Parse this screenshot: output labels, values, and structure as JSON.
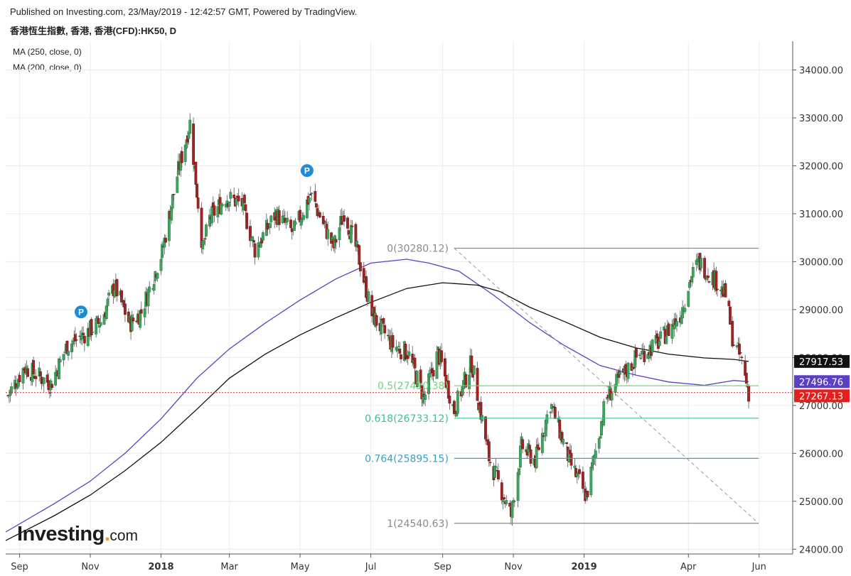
{
  "header": {
    "published": "Published on Investing.com, 23/May/2019 - 12:42:57 GMT, Powered by TradingView.",
    "symbol": "香港恆生指數, 香港, 香港(CFD):HK50, D"
  },
  "indicators": [
    {
      "label": "MA (250, close, 0)",
      "color": "#111111"
    },
    {
      "label": "MA (200, close, 0)",
      "color": "#5b3fc4"
    }
  ],
  "logo": {
    "word": "Investing",
    "suffix": "com"
  },
  "chart_data": {
    "type": "candlestick",
    "price_axis": {
      "ticks": [
        "34000.00",
        "33000.00",
        "32000.00",
        "31000.00",
        "30000.00",
        "29000.00",
        "28000.00",
        "27000.00",
        "26000.00",
        "25000.00",
        "24000.00"
      ],
      "tick_values": [
        34000,
        33000,
        32000,
        31000,
        30000,
        29000,
        28000,
        27000,
        26000,
        25000,
        24000
      ],
      "range": [
        23900,
        34600
      ]
    },
    "time_axis": {
      "labels": [
        "Sep",
        "Nov",
        "2018",
        "Mar",
        "May",
        "Jul",
        "Sep",
        "Nov",
        "2019",
        "Apr",
        "Jun"
      ],
      "bold": [
        false,
        false,
        true,
        false,
        false,
        false,
        false,
        false,
        true,
        false,
        false
      ],
      "dates": [
        "2017-09-01",
        "2017-11-01",
        "2018-01-01",
        "2018-03-01",
        "2018-05-01",
        "2018-07-01",
        "2018-09-01",
        "2018-11-01",
        "2019-01-01",
        "2019-04-01",
        "2019-06-01"
      ],
      "range": [
        "2017-08-20",
        "2019-06-30"
      ]
    },
    "price_labels": [
      {
        "value": 27917.53,
        "text": "27917.53",
        "bg": "#111111",
        "fg": "#ffffff"
      },
      {
        "value": 27496.76,
        "text": "27496.76",
        "bg": "#5b3fc4",
        "fg": "#ffffff"
      },
      {
        "value": 27267.13,
        "text": "27267.13",
        "bg": "#e4201f",
        "fg": "#ffffff"
      }
    ],
    "last_price": 27267.13,
    "fibonacci": {
      "start_date": "2018-09-11",
      "end_date": "2019-06-30",
      "levels": [
        {
          "label": "0(30280.12)",
          "value": 30280.12,
          "color": "#8a8a8a"
        },
        {
          "label": "0.5(27410.38)",
          "value": 27410.38,
          "color": "#79cf7e"
        },
        {
          "label": "0.618(26733.12)",
          "value": 26733.12,
          "color": "#3fbf96"
        },
        {
          "label": "0.764(25895.15)",
          "value": 25895.15,
          "color": "#3e9fc2"
        },
        {
          "label": "1(24540.63)",
          "value": 24540.63,
          "color": "#8a8a8a"
        }
      ]
    },
    "pivot_markers": [
      {
        "label": "P",
        "date": "2017-10-24",
        "value": 28950
      },
      {
        "label": "P",
        "date": "2018-05-07",
        "value": 31900
      }
    ],
    "colors": {
      "up": "#3ea55e",
      "down": "#a02423",
      "ma250": "#111111",
      "ma200": "#5b3fc4",
      "grid": "#ececec"
    },
    "ma250": [
      [
        "2017-08-20",
        24180
      ],
      [
        "2017-10-01",
        24700
      ],
      [
        "2017-11-01",
        25130
      ],
      [
        "2017-12-01",
        25640
      ],
      [
        "2018-01-01",
        26230
      ],
      [
        "2018-02-01",
        26920
      ],
      [
        "2018-03-01",
        27570
      ],
      [
        "2018-04-01",
        28070
      ],
      [
        "2018-05-01",
        28470
      ],
      [
        "2018-06-01",
        28830
      ],
      [
        "2018-07-01",
        29150
      ],
      [
        "2018-08-01",
        29440
      ],
      [
        "2018-09-01",
        29560
      ],
      [
        "2018-10-01",
        29510
      ],
      [
        "2018-10-20",
        29380
      ],
      [
        "2018-11-15",
        29050
      ],
      [
        "2018-12-15",
        28750
      ],
      [
        "2019-01-15",
        28420
      ],
      [
        "2019-02-15",
        28200
      ],
      [
        "2019-03-15",
        28070
      ],
      [
        "2019-04-15",
        27990
      ],
      [
        "2019-05-10",
        27960
      ],
      [
        "2019-05-23",
        27917
      ]
    ],
    "ma200": [
      [
        "2017-08-20",
        24360
      ],
      [
        "2017-10-01",
        24950
      ],
      [
        "2017-11-01",
        25420
      ],
      [
        "2017-12-01",
        26000
      ],
      [
        "2018-01-01",
        26720
      ],
      [
        "2018-02-01",
        27570
      ],
      [
        "2018-03-01",
        28180
      ],
      [
        "2018-04-01",
        28720
      ],
      [
        "2018-05-01",
        29200
      ],
      [
        "2018-06-01",
        29640
      ],
      [
        "2018-07-01",
        29970
      ],
      [
        "2018-08-01",
        30050
      ],
      [
        "2018-08-20",
        29970
      ],
      [
        "2018-09-15",
        29800
      ],
      [
        "2018-10-15",
        29300
      ],
      [
        "2018-11-15",
        28730
      ],
      [
        "2018-12-15",
        28250
      ],
      [
        "2019-01-15",
        27830
      ],
      [
        "2019-02-15",
        27630
      ],
      [
        "2019-03-15",
        27490
      ],
      [
        "2019-04-15",
        27420
      ],
      [
        "2019-05-10",
        27520
      ],
      [
        "2019-05-23",
        27497
      ]
    ],
    "path": [
      [
        "2017-08-22",
        27200
      ],
      [
        "2017-09-05",
        27800
      ],
      [
        "2017-09-15",
        27650
      ],
      [
        "2017-09-28",
        27450
      ],
      [
        "2017-10-12",
        28250
      ],
      [
        "2017-10-25",
        28450
      ],
      [
        "2017-11-10",
        28750
      ],
      [
        "2017-11-22",
        29500
      ],
      [
        "2017-12-05",
        28700
      ],
      [
        "2017-12-15",
        28950
      ],
      [
        "2018-01-02",
        30200
      ],
      [
        "2018-01-15",
        31800
      ],
      [
        "2018-01-26",
        32900
      ],
      [
        "2018-02-06",
        30250
      ],
      [
        "2018-02-12",
        30900
      ],
      [
        "2018-02-26",
        31350
      ],
      [
        "2018-03-12",
        31200
      ],
      [
        "2018-03-23",
        30250
      ],
      [
        "2018-04-10",
        31000
      ],
      [
        "2018-04-25",
        30600
      ],
      [
        "2018-05-10",
        31400
      ],
      [
        "2018-05-30",
        30300
      ],
      [
        "2018-06-08",
        31050
      ],
      [
        "2018-06-20",
        30150
      ],
      [
        "2018-07-02",
        28900
      ],
      [
        "2018-07-20",
        28250
      ],
      [
        "2018-08-02",
        28100
      ],
      [
        "2018-08-16",
        27150
      ],
      [
        "2018-08-28",
        28100
      ],
      [
        "2018-09-11",
        26900
      ],
      [
        "2018-09-26",
        27900
      ],
      [
        "2018-10-11",
        25900
      ],
      [
        "2018-10-30",
        24700
      ],
      [
        "2018-11-08",
        26150
      ],
      [
        "2018-11-20",
        25850
      ],
      [
        "2018-12-03",
        27050
      ],
      [
        "2018-12-20",
        25800
      ],
      [
        "2019-01-03",
        25100
      ],
      [
        "2019-01-20",
        27150
      ],
      [
        "2019-02-15",
        28000
      ],
      [
        "2019-03-08",
        28350
      ],
      [
        "2019-03-25",
        28900
      ],
      [
        "2019-04-03",
        29650
      ],
      [
        "2019-04-10",
        30000
      ],
      [
        "2019-04-25",
        29600
      ],
      [
        "2019-05-03",
        29300
      ],
      [
        "2019-05-10",
        28300
      ],
      [
        "2019-05-17",
        27950
      ],
      [
        "2019-05-23",
        27267
      ]
    ]
  }
}
